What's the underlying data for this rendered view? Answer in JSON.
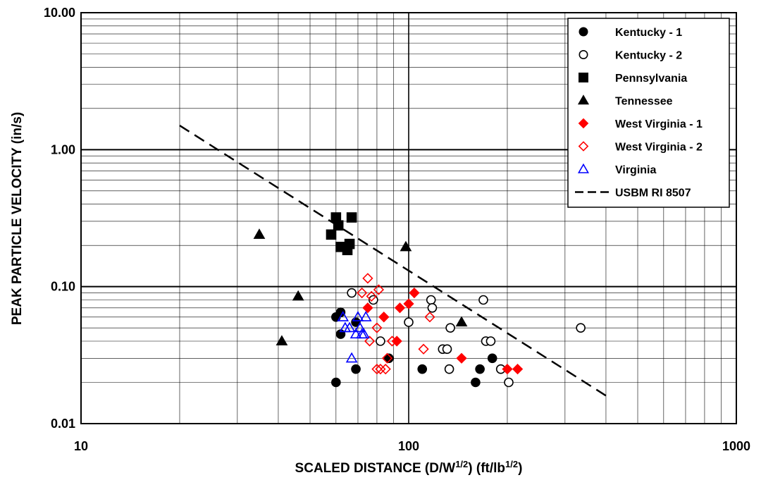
{
  "chart_data": {
    "type": "scatter",
    "xscale": "log",
    "yscale": "log",
    "xlim": [
      10,
      1000
    ],
    "ylim": [
      0.01,
      10
    ],
    "grid": true,
    "legend_position": "top-right",
    "xlabel_parts": [
      "SCALED DISTANCE (D/W",
      "1/2",
      ")  (ft/lb",
      "1/2",
      ")"
    ],
    "ylabel": "PEAK PARTICLE VELOCITY (in/s)",
    "x_tick_labels": [
      "10",
      "100",
      "1000"
    ],
    "y_tick_labels": [
      "0.01",
      "0.10",
      "1.00",
      "10.00"
    ],
    "series": [
      {
        "name": "Kentucky - 1",
        "marker": "circle",
        "filled": true,
        "color": "#000000",
        "points": [
          [
            60,
            0.02
          ],
          [
            60,
            0.06
          ],
          [
            62,
            0.045
          ],
          [
            62,
            0.065
          ],
          [
            69,
            0.055
          ],
          [
            69,
            0.025
          ],
          [
            87,
            0.03
          ],
          [
            110,
            0.025
          ],
          [
            160,
            0.02
          ],
          [
            165,
            0.025
          ],
          [
            180,
            0.03
          ]
        ]
      },
      {
        "name": "Kentucky - 2",
        "marker": "circle",
        "filled": false,
        "color": "#000000",
        "points": [
          [
            67,
            0.09
          ],
          [
            78,
            0.08
          ],
          [
            82,
            0.04
          ],
          [
            100,
            0.055
          ],
          [
            117,
            0.08
          ],
          [
            118,
            0.07
          ],
          [
            127,
            0.035
          ],
          [
            131,
            0.035
          ],
          [
            133,
            0.025
          ],
          [
            134,
            0.05
          ],
          [
            169,
            0.08
          ],
          [
            172,
            0.04
          ],
          [
            178,
            0.04
          ],
          [
            191,
            0.025
          ],
          [
            202,
            0.02
          ],
          [
            335,
            0.05
          ]
        ]
      },
      {
        "name": "Pennsylvania",
        "marker": "square",
        "filled": true,
        "color": "#000000",
        "points": [
          [
            58,
            0.24
          ],
          [
            60,
            0.32
          ],
          [
            61,
            0.28
          ],
          [
            62,
            0.195
          ],
          [
            65,
            0.185
          ],
          [
            66,
            0.205
          ],
          [
            67,
            0.32
          ]
        ]
      },
      {
        "name": "Tennessee",
        "marker": "triangle",
        "filled": true,
        "color": "#000000",
        "points": [
          [
            35,
            0.24
          ],
          [
            41,
            0.04
          ],
          [
            46,
            0.085
          ],
          [
            98,
            0.195
          ],
          [
            145,
            0.055
          ]
        ]
      },
      {
        "name": "West Virginia - 1",
        "marker": "diamond",
        "filled": true,
        "color": "#ff0000",
        "points": [
          [
            75,
            0.07
          ],
          [
            84,
            0.06
          ],
          [
            92,
            0.04
          ],
          [
            94,
            0.07
          ],
          [
            100,
            0.075
          ],
          [
            104,
            0.09
          ],
          [
            145,
            0.03
          ],
          [
            200,
            0.025
          ],
          [
            215,
            0.025
          ]
        ]
      },
      {
        "name": "West Virginia - 2",
        "marker": "diamond",
        "filled": false,
        "color": "#ff0000",
        "points": [
          [
            75,
            0.115
          ],
          [
            72,
            0.09
          ],
          [
            77,
            0.085
          ],
          [
            80,
            0.05
          ],
          [
            81,
            0.095
          ],
          [
            82,
            0.025
          ],
          [
            84,
            0.06
          ],
          [
            86,
            0.03
          ],
          [
            85,
            0.025
          ],
          [
            76,
            0.04
          ],
          [
            80,
            0.025
          ],
          [
            89,
            0.04
          ],
          [
            111,
            0.035
          ],
          [
            116,
            0.06
          ]
        ]
      },
      {
        "name": "Virginia",
        "marker": "triangle",
        "filled": false,
        "color": "#0000ff",
        "points": [
          [
            63,
            0.06
          ],
          [
            64,
            0.05
          ],
          [
            66,
            0.05
          ],
          [
            67,
            0.03
          ],
          [
            69,
            0.045
          ],
          [
            70,
            0.06
          ],
          [
            71,
            0.05
          ],
          [
            72,
            0.045
          ],
          [
            73,
            0.045
          ],
          [
            74,
            0.06
          ]
        ]
      },
      {
        "name": "USBM RI 8507",
        "marker": "dashed-line",
        "filled": false,
        "color": "#000000",
        "points": [
          [
            20,
            1.5
          ],
          [
            400,
            0.016
          ]
        ]
      }
    ]
  }
}
